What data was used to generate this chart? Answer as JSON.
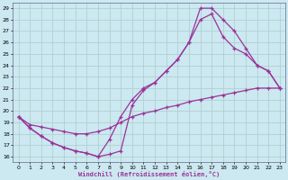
{
  "xlabel": "Windchill (Refroidissement éolien,°C)",
  "background_color": "#cce8f0",
  "grid_color": "#aacccc",
  "line_color": "#993399",
  "xlim": [
    -0.5,
    23.5
  ],
  "ylim": [
    15.5,
    29.5
  ],
  "xticks": [
    0,
    1,
    2,
    3,
    4,
    5,
    6,
    7,
    8,
    9,
    10,
    11,
    12,
    13,
    14,
    15,
    16,
    17,
    18,
    19,
    20,
    21,
    22,
    23
  ],
  "yticks": [
    16,
    17,
    18,
    19,
    20,
    21,
    22,
    23,
    24,
    25,
    26,
    27,
    28,
    29
  ],
  "line1_x": [
    0,
    1,
    2,
    3,
    4,
    5,
    6,
    7,
    8,
    9,
    10,
    11,
    12,
    13,
    14,
    15,
    16,
    17,
    18,
    19,
    20,
    21,
    22,
    23
  ],
  "line1_y": [
    19.5,
    18.5,
    17.8,
    17.2,
    16.8,
    16.5,
    16.3,
    16.0,
    16.2,
    16.5,
    20.5,
    21.8,
    22.5,
    23.5,
    24.5,
    26.0,
    29.0,
    29.0,
    28.0,
    27.0,
    25.5,
    24.0,
    23.5,
    22.0
  ],
  "line2_x": [
    0,
    1,
    2,
    3,
    4,
    5,
    6,
    7,
    8,
    9,
    10,
    11,
    12,
    13,
    14,
    15,
    16,
    17,
    18,
    19,
    20,
    21,
    22,
    23
  ],
  "line2_y": [
    19.5,
    18.5,
    17.8,
    17.2,
    16.8,
    16.5,
    16.3,
    16.0,
    17.5,
    19.5,
    21.0,
    22.0,
    22.5,
    23.5,
    24.5,
    26.0,
    28.0,
    28.5,
    26.5,
    25.5,
    25.0,
    24.0,
    23.5,
    22.0
  ],
  "line3_x": [
    0,
    1,
    2,
    3,
    4,
    5,
    6,
    7,
    8,
    9,
    10,
    11,
    12,
    13,
    14,
    15,
    16,
    17,
    18,
    19,
    20,
    21,
    22,
    23
  ],
  "line3_y": [
    19.5,
    18.8,
    18.6,
    18.4,
    18.2,
    18.0,
    18.0,
    18.2,
    18.5,
    19.0,
    19.5,
    19.8,
    20.0,
    20.3,
    20.5,
    20.8,
    21.0,
    21.2,
    21.4,
    21.6,
    21.8,
    22.0,
    22.0,
    22.0
  ]
}
